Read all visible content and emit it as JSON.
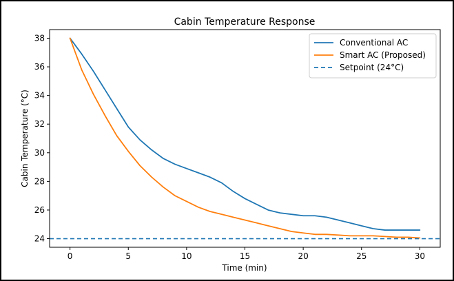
{
  "chart_data": {
    "type": "line",
    "title": "Cabin Temperature Response",
    "xlabel": "Time (min)",
    "ylabel": "Cabin Temperature (°C)",
    "xlim": [
      -1.75,
      31.75
    ],
    "ylim": [
      23.4,
      38.6
    ],
    "xticks": [
      0,
      5,
      10,
      15,
      20,
      25,
      30
    ],
    "yticks": [
      24,
      26,
      28,
      30,
      32,
      34,
      36,
      38
    ],
    "grid": false,
    "legend_position": "top-right",
    "x": [
      0,
      1,
      2,
      3,
      4,
      5,
      6,
      7,
      8,
      9,
      10,
      11,
      12,
      13,
      14,
      15,
      16,
      17,
      18,
      19,
      20,
      21,
      22,
      23,
      24,
      25,
      26,
      27,
      28,
      29,
      30
    ],
    "series": [
      {
        "name": "Conventional AC",
        "color": "#1f77b4",
        "style": "solid",
        "values": [
          38.0,
          36.9,
          35.7,
          34.4,
          33.1,
          31.8,
          30.9,
          30.2,
          29.6,
          29.2,
          28.9,
          28.6,
          28.3,
          27.9,
          27.3,
          26.8,
          26.4,
          26.0,
          25.8,
          25.7,
          25.6,
          25.6,
          25.5,
          25.3,
          25.1,
          24.9,
          24.7,
          24.6,
          24.6,
          24.6,
          24.6
        ]
      },
      {
        "name": "Smart AC (Proposed)",
        "color": "#ff7f0e",
        "style": "solid",
        "values": [
          38.0,
          35.8,
          34.1,
          32.6,
          31.2,
          30.1,
          29.1,
          28.3,
          27.6,
          27.0,
          26.6,
          26.2,
          25.9,
          25.7,
          25.5,
          25.3,
          25.1,
          24.9,
          24.7,
          24.5,
          24.4,
          24.3,
          24.3,
          24.25,
          24.2,
          24.2,
          24.2,
          24.15,
          24.1,
          24.1,
          24.05
        ]
      },
      {
        "name": "Setpoint (24°C)",
        "color": "#1f77b4",
        "style": "dashed",
        "constant": 24
      }
    ]
  }
}
